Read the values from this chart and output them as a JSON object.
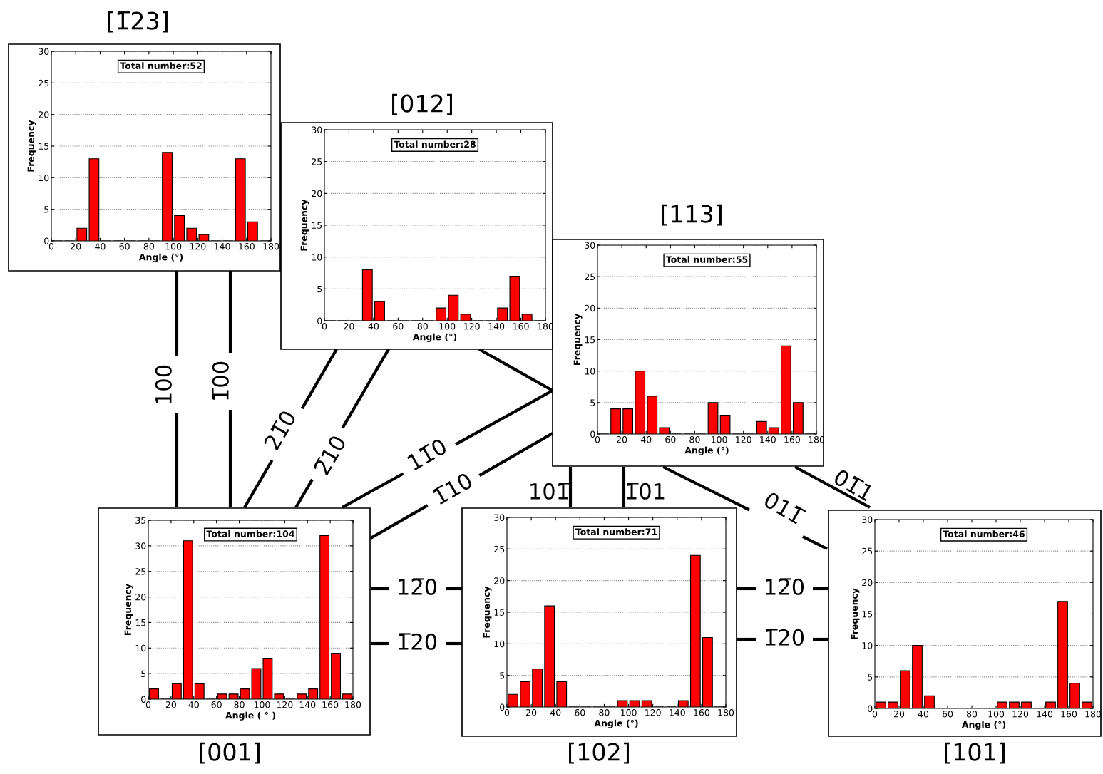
{
  "chart_data": [
    {
      "type": "histogram",
      "title": "[1̅23]",
      "xlabel": "Angle (°)",
      "ylabel": "Frequency",
      "annotations": [
        "Total number:52"
      ],
      "bins": [
        0,
        10,
        20,
        30,
        40,
        50,
        60,
        70,
        80,
        90,
        100,
        110,
        120,
        130,
        140,
        150,
        160,
        170,
        180
      ],
      "values": [
        0,
        0,
        2,
        13,
        0,
        0,
        0,
        0,
        0,
        14,
        4,
        2,
        1,
        0,
        0,
        13,
        3,
        0
      ],
      "color": "#ff0000",
      "xlim": [
        0,
        180
      ],
      "ylim": [
        0,
        30
      ],
      "xticks": [
        0,
        20,
        40,
        60,
        80,
        100,
        120,
        140,
        160,
        180
      ],
      "yticks": [
        0,
        5,
        10,
        15,
        20,
        25,
        30
      ],
      "grid": "y"
    },
    {
      "type": "histogram",
      "title": "[012]",
      "xlabel": "Angle (°)",
      "ylabel": "Frequency",
      "annotations": [
        "Total number:28"
      ],
      "bins": [
        0,
        10,
        20,
        30,
        40,
        50,
        60,
        70,
        80,
        90,
        100,
        110,
        120,
        130,
        140,
        150,
        160,
        170,
        180
      ],
      "values": [
        0,
        0,
        0,
        8,
        3,
        0,
        0,
        0,
        0,
        2,
        4,
        1,
        0,
        0,
        2,
        7,
        1,
        0
      ],
      "color": "#ff0000",
      "xlim": [
        0,
        180
      ],
      "ylim": [
        0,
        30
      ],
      "xticks": [
        0,
        20,
        40,
        60,
        80,
        100,
        120,
        140,
        160,
        180
      ],
      "yticks": [
        0,
        5,
        10,
        15,
        20,
        25,
        30
      ],
      "grid": "y"
    },
    {
      "type": "histogram",
      "title": "[113]",
      "xlabel": "Angle (°)",
      "ylabel": "Frequency",
      "annotations": [
        "Total number:55"
      ],
      "bins": [
        0,
        10,
        20,
        30,
        40,
        50,
        60,
        70,
        80,
        90,
        100,
        110,
        120,
        130,
        140,
        150,
        160,
        170,
        180
      ],
      "values": [
        0,
        4,
        4,
        10,
        6,
        1,
        0,
        0,
        0,
        5,
        3,
        0,
        0,
        2,
        1,
        14,
        5,
        0
      ],
      "color": "#ff0000",
      "xlim": [
        0,
        180
      ],
      "ylim": [
        0,
        30
      ],
      "xticks": [
        0,
        20,
        40,
        60,
        80,
        100,
        120,
        140,
        160,
        180
      ],
      "yticks": [
        0,
        5,
        10,
        15,
        20,
        25,
        30
      ],
      "grid": "y"
    },
    {
      "type": "histogram",
      "title": "[001]",
      "xlabel": "Angle ( ° )",
      "ylabel": "Frequency",
      "annotations": [
        "Total number:104"
      ],
      "bins": [
        0,
        10,
        20,
        30,
        40,
        50,
        60,
        70,
        80,
        90,
        100,
        110,
        120,
        130,
        140,
        150,
        160,
        170,
        180
      ],
      "values": [
        2,
        0,
        3,
        31,
        3,
        0,
        1,
        1,
        2,
        6,
        8,
        1,
        0,
        1,
        2,
        32,
        9,
        1
      ],
      "color": "#ff0000",
      "xlim": [
        0,
        180
      ],
      "ylim": [
        0,
        35
      ],
      "xticks": [
        0,
        20,
        40,
        60,
        80,
        100,
        120,
        140,
        160,
        180
      ],
      "yticks": [
        0,
        5,
        10,
        15,
        20,
        25,
        30,
        35
      ],
      "grid": "y"
    },
    {
      "type": "histogram",
      "title": "[102]",
      "xlabel": "Angle (°)",
      "ylabel": "Frequency",
      "annotations": [
        "Total number:71"
      ],
      "bins": [
        0,
        10,
        20,
        30,
        40,
        50,
        60,
        70,
        80,
        90,
        100,
        110,
        120,
        130,
        140,
        150,
        160,
        170,
        180
      ],
      "values": [
        2,
        4,
        6,
        16,
        4,
        0,
        0,
        0,
        0,
        1,
        1,
        1,
        0,
        0,
        1,
        24,
        11,
        0
      ],
      "color": "#ff0000",
      "xlim": [
        0,
        180
      ],
      "ylim": [
        0,
        30
      ],
      "xticks": [
        0,
        20,
        40,
        60,
        80,
        100,
        120,
        140,
        160,
        180
      ],
      "yticks": [
        0,
        5,
        10,
        15,
        20,
        25,
        30
      ],
      "grid": "y"
    },
    {
      "type": "histogram",
      "title": "[101]",
      "xlabel": "Angle (°)",
      "ylabel": "Frequency",
      "annotations": [
        "Total number:46"
      ],
      "bins": [
        0,
        10,
        20,
        30,
        40,
        50,
        60,
        70,
        80,
        90,
        100,
        110,
        120,
        130,
        140,
        150,
        160,
        170,
        180
      ],
      "values": [
        1,
        1,
        6,
        10,
        2,
        0,
        0,
        0,
        0,
        0,
        1,
        1,
        1,
        0,
        1,
        17,
        4,
        1
      ],
      "color": "#ff0000",
      "xlim": [
        0,
        180
      ],
      "ylim": [
        0,
        30
      ],
      "xticks": [
        0,
        20,
        40,
        60,
        80,
        100,
        120,
        140,
        160,
        180
      ],
      "yticks": [
        0,
        5,
        10,
        15,
        20,
        25,
        30
      ],
      "grid": "y"
    },
    {
      "type": "other",
      "annotations": [
        "100",
        "1̅00",
        "21̅0",
        "2̅10",
        "11̅0",
        "1̅10",
        "101̅",
        "1̅01",
        "011̅",
        "01̅1",
        "12̅0",
        "1̅20",
        "12̅0",
        "1̅20"
      ]
    }
  ]
}
